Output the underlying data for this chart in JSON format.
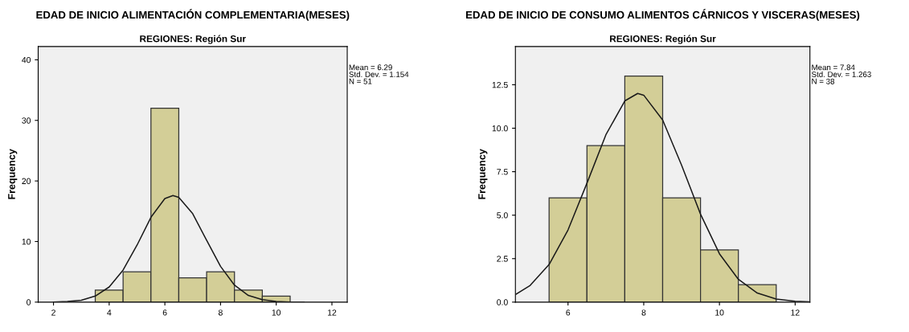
{
  "chart_data": [
    {
      "type": "histogram",
      "title": "EDAD DE INICIO ALIMENTACIÓN COMPLEMENTARIA(MESES)",
      "subtitle": "REGIONES: Región Sur",
      "ylabel": "Frequency",
      "bins": [
        3.5,
        4.5,
        5.5,
        6.5,
        7.5,
        8.5,
        9.5,
        10.5
      ],
      "values": [
        2,
        5,
        32,
        4,
        5,
        2,
        1
      ],
      "color": "#d3ce97",
      "series": [
        {
          "type": "line",
          "color": "#1a1a1a",
          "x": [
            2,
            2.5,
            3,
            3.5,
            4,
            4.5,
            5,
            5.5,
            6,
            6.29,
            6.5,
            7,
            7.5,
            8,
            8.5,
            9,
            9.5,
            10,
            10.5,
            11
          ],
          "values": [
            0,
            0.1,
            0.3,
            1.0,
            2.5,
            5.3,
            9.4,
            14.0,
            17.1,
            17.6,
            17.3,
            14.6,
            10.2,
            5.9,
            2.8,
            1.1,
            0.4,
            0.1,
            0,
            0
          ]
        }
      ],
      "xlim": [
        1.45,
        12.55
      ],
      "xticks": [
        2,
        4,
        6,
        8,
        10,
        12
      ],
      "ylim": [
        0,
        42.2
      ],
      "yticks": [
        0,
        10,
        20,
        30,
        40
      ],
      "annotations": [
        "Mean = 6.29",
        "Std. Dev. = 1.154",
        "N = 51"
      ]
    },
    {
      "type": "histogram",
      "title": "EDAD DE INICIO DE CONSUMO ALIMENTOS CÁRNICOS Y VISCERAS(MESES)",
      "subtitle": "REGIONES: Región Sur",
      "ylabel": "Frequency",
      "bins": [
        5.5,
        6.5,
        7.5,
        8.5,
        9.5,
        10.5,
        11.5
      ],
      "values": [
        6,
        9,
        13,
        6,
        3,
        1
      ],
      "color": "#d3ce97",
      "series": [
        {
          "type": "line",
          "color": "#1a1a1a",
          "x": [
            4.62,
            5,
            5.5,
            6,
            6.5,
            7,
            7.5,
            7.84,
            8,
            8.5,
            9,
            9.5,
            10,
            10.5,
            11,
            11.5,
            12,
            12.38
          ],
          "values": [
            0.45,
            0.96,
            2.16,
            4.15,
            6.84,
            9.62,
            11.57,
            12.0,
            11.9,
            10.47,
            7.87,
            5.06,
            2.78,
            1.31,
            0.52,
            0.18,
            0.05,
            0.02
          ]
        }
      ],
      "xlim": [
        4.61,
        12.39
      ],
      "xticks": [
        6,
        8,
        10,
        12
      ],
      "ylim": [
        0,
        14.7
      ],
      "yticks": [
        {
          "value": 0,
          "label": "0.0"
        },
        {
          "value": 2.5,
          "label": "2.5"
        },
        {
          "value": 5,
          "label": "5.0"
        },
        {
          "value": 7.5,
          "label": "7.5"
        },
        {
          "value": 10,
          "label": "10.0"
        },
        {
          "value": 12.5,
          "label": "12.5"
        }
      ],
      "annotations": [
        "Mean = 7.84",
        "Std. Dev. = 1.263",
        "N = 38"
      ]
    }
  ]
}
